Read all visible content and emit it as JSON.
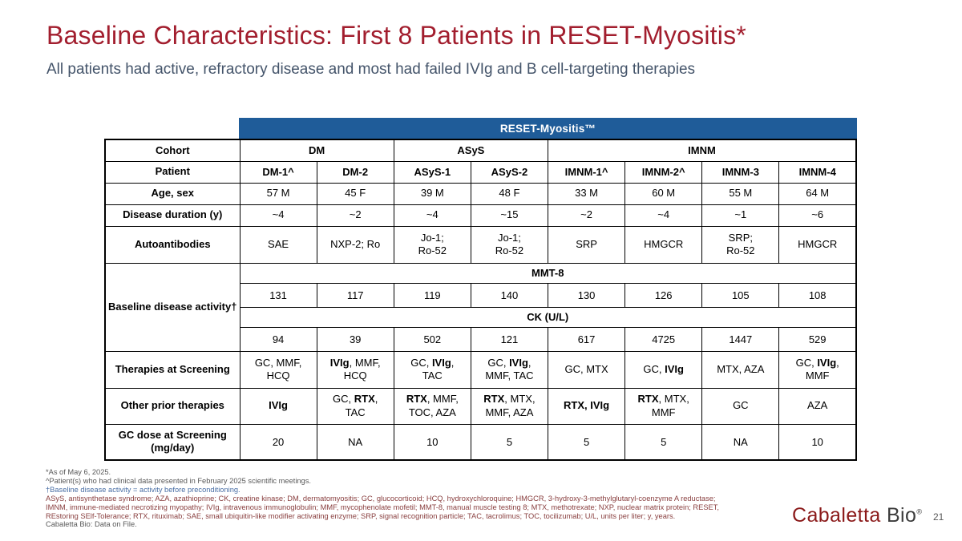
{
  "slide": {
    "title": "Baseline Characteristics: First 8 Patients in RESET-Myositis*",
    "subtitle": "All patients had active, refractory disease and most had failed IVIg and B cell-targeting therapies"
  },
  "colors": {
    "title_red": "#A21E2E",
    "subtitle_slate": "#44546A",
    "banner_blue": "#1F5C99",
    "therapy_cell_gray": "#D2D2D2",
    "subheader_gray": "#F2F2F2",
    "logo_red": "#8B1A1A"
  },
  "table": {
    "banner": "RESET-Myositis™",
    "cohort_label": "Cohort",
    "cohorts": [
      {
        "label": "DM",
        "span": 2
      },
      {
        "label": "ASyS",
        "span": 2
      },
      {
        "label": "IMNM",
        "span": 4
      }
    ],
    "patient_label": "Patient",
    "patients": [
      "DM-1^",
      "DM-2",
      "ASyS-1",
      "ASyS-2",
      "IMNM-1^",
      "IMNM-2^",
      "IMNM-3",
      "IMNM-4"
    ],
    "simple_rows": [
      {
        "name": "age-sex",
        "label": "Age, sex",
        "cells": [
          "57 M",
          "45 F",
          "39 M",
          "48 F",
          "33 M",
          "60 M",
          "55 M",
          "64 M"
        ]
      },
      {
        "name": "disease-duration",
        "label": "Disease duration (y)",
        "cells": [
          "~4",
          "~2",
          "~4",
          "~15",
          "~2",
          "~4",
          "~1",
          "~6"
        ]
      },
      {
        "name": "autoantibodies",
        "label": "Autoantibodies",
        "cells": [
          "SAE",
          "NXP-2; Ro",
          "Jo-1;\nRo-52",
          "Jo-1;\nRo-52",
          "SRP",
          "HMGCR",
          "SRP;\nRo-52",
          "HMGCR"
        ]
      }
    ],
    "baseline": {
      "label": "Baseline disease activity†",
      "mmt8_header": "MMT-8",
      "mmt8_values": [
        "131",
        "117",
        "119",
        "140",
        "130",
        "126",
        "105",
        "108"
      ],
      "ck_header": "CK (U/L)",
      "ck_values": [
        "94",
        "39",
        "502",
        "121",
        "617",
        "4725",
        "1447",
        "529"
      ]
    },
    "therapies_screening": {
      "label": "Therapies at Screening",
      "cells": [
        "GC, MMF, HCQ",
        "**IVIg**, MMF,\nHCQ",
        "GC, **IVIg**,\nTAC",
        "GC, **IVIg**,\nMMF, TAC",
        "GC, MTX",
        "GC, **IVIg**",
        "MTX, AZA",
        "GC, **IVIg**,\nMMF"
      ]
    },
    "other_prior": {
      "label": "Other prior therapies",
      "cells": [
        "**IVIg**",
        "GC, **RTX**,\nTAC",
        "**RTX**, MMF,\nTOC, AZA",
        "**RTX**, MTX,\nMMF,  AZA",
        "**RTX, IVIg**",
        "**RTX**, MTX,\nMMF",
        "GC",
        "AZA"
      ]
    },
    "gc_dose": {
      "label": "GC dose at Screening (mg/day)",
      "cells": [
        "20",
        "NA",
        "10",
        "5",
        "5",
        "5",
        "NA",
        "10"
      ]
    }
  },
  "footnotes": [
    {
      "tone": "gray",
      "text": "*As of May 6, 2025."
    },
    {
      "tone": "gray",
      "text": "^Patient(s) who had clinical data presented in February 2025 scientific meetings."
    },
    {
      "tone": "blue",
      "text": "†Baseline disease activity = activity before preconditioning."
    },
    {
      "tone": "red",
      "text": "ASyS, antisynthetase syndrome; AZA, azathioprine; CK, creatine kinase; DM, dermatomyositis; GC, glucocorticoid; HCQ, hydroxychloroquine; HMGCR, 3-hydroxy-3-methylglutaryl-coenzyme A reductase;"
    },
    {
      "tone": "red",
      "text": "IMNM, immune-mediated necrotizing myopathy; IVIg, intravenous immunoglobulin; MMF, mycophenolate mofetil; MMT-8, manual muscle testing 8; MTX, methotrexate; NXP, nuclear matrix protein; RESET,"
    },
    {
      "tone": "red",
      "text": "REstoring SElf-Tolerance; RTX, rituximab; SAE, small ubiquitin-like modifier activating enzyme; SRP, signal recognition particle; TAC, tacrolimus; TOC, tocilizumab; U/L, units per liter; y, years."
    },
    {
      "tone": "gray",
      "text": "Cabaletta Bio: Data on File."
    }
  ],
  "footer": {
    "logo_primary": "Cabaletta",
    "logo_secondary": " Bio",
    "logo_reg": "®",
    "page_number": "21"
  }
}
